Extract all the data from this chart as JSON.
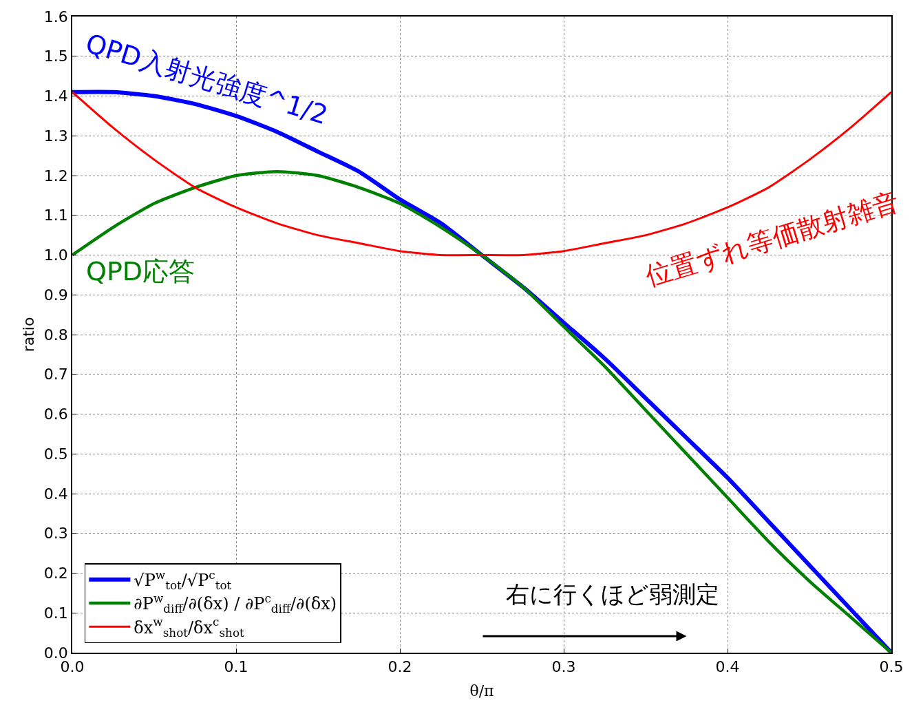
{
  "chart_data": {
    "type": "line",
    "xlabel": "θ/π",
    "ylabel": "ratio",
    "x": [
      0,
      0.025,
      0.05,
      0.075,
      0.1,
      0.125,
      0.15,
      0.175,
      0.2,
      0.225,
      0.25,
      0.275,
      0.3,
      0.325,
      0.35,
      0.375,
      0.4,
      0.425,
      0.45,
      0.475,
      0.5
    ],
    "series": [
      {
        "name": "√P$^{w}$$_{tot}$/√P$^{c}$$_{tot}$",
        "color": "#0000ff",
        "values": [
          1.41,
          1.41,
          1.4,
          1.38,
          1.35,
          1.31,
          1.26,
          1.21,
          1.14,
          1.08,
          1.0,
          0.92,
          0.83,
          0.74,
          0.64,
          0.54,
          0.44,
          0.33,
          0.22,
          0.11,
          0.0
        ]
      },
      {
        "name": "∂P$^{w}$$_{diff}$/∂(δx) / ∂P$^{c}$$_{diff}$/∂(δx)",
        "color": "#008000",
        "values": [
          1.0,
          1.07,
          1.13,
          1.17,
          1.2,
          1.21,
          1.2,
          1.17,
          1.13,
          1.07,
          1.0,
          0.92,
          0.82,
          0.72,
          0.61,
          0.5,
          0.39,
          0.28,
          0.18,
          0.09,
          0.0
        ]
      },
      {
        "name": "δx$^{w}$$_{shot}$/δx$^{c}$$_{shot}$",
        "color": "#ff0000",
        "values": [
          1.41,
          1.32,
          1.24,
          1.17,
          1.12,
          1.08,
          1.05,
          1.03,
          1.01,
          1.0,
          1.0,
          1.0,
          1.01,
          1.03,
          1.05,
          1.08,
          1.12,
          1.17,
          1.24,
          1.32,
          1.41
        ]
      }
    ],
    "annotations": [
      "QPD入射光強度^1/2",
      "QPD応答",
      "位置ずれ等価散射雑音",
      "右に行くほど弱測定"
    ],
    "xlim": [
      0,
      0.5
    ],
    "ylim": [
      0,
      1.6
    ],
    "xticks": [
      {
        "value": 0,
        "label": "0.0"
      },
      {
        "value": 0.1,
        "label": "0.1"
      },
      {
        "value": 0.2,
        "label": "0.2"
      },
      {
        "value": 0.3,
        "label": "0.3"
      },
      {
        "value": 0.4,
        "label": "0.4"
      },
      {
        "value": 0.5,
        "label": "0.5"
      }
    ],
    "yticks": [
      {
        "value": 0,
        "label": "0.0"
      },
      {
        "value": 0.1,
        "label": "0.1"
      },
      {
        "value": 0.2,
        "label": "0.2"
      },
      {
        "value": 0.3,
        "label": "0.3"
      },
      {
        "value": 0.4,
        "label": "0.4"
      },
      {
        "value": 0.5,
        "label": "0.5"
      },
      {
        "value": 0.6,
        "label": "0.6"
      },
      {
        "value": 0.7,
        "label": "0.7"
      },
      {
        "value": 0.8,
        "label": "0.8"
      },
      {
        "value": 0.9,
        "label": "0.9"
      },
      {
        "value": 1.0,
        "label": "1.0"
      },
      {
        "value": 1.1,
        "label": "1.1"
      },
      {
        "value": 1.2,
        "label": "1.2"
      },
      {
        "value": 1.3,
        "label": "1.3"
      },
      {
        "value": 1.4,
        "label": "1.4"
      },
      {
        "value": 1.5,
        "label": "1.5"
      },
      {
        "value": 1.6,
        "label": "1.6"
      }
    ],
    "grid": true,
    "legend": "bottom left",
    "line_style": "solid"
  }
}
